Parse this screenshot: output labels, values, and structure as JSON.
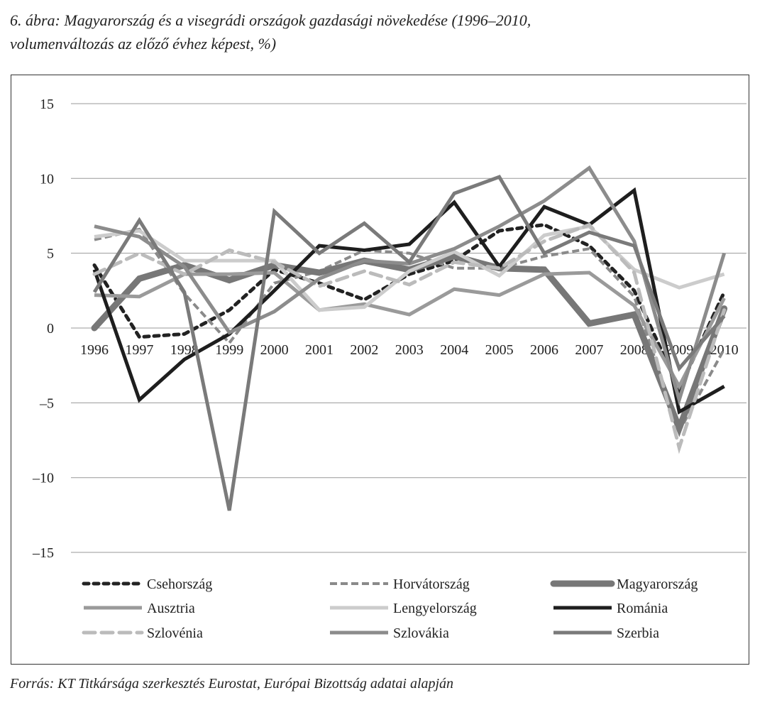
{
  "title_line1": "6. ábra: Magyarország és a visegrádi országok gazdasági növekedése (1996–2010,",
  "title_line2": "volumenváltozás az előző évhez képest, %)",
  "source": "Forrás: KT Titkársága szerkesztés Eurostat, Európai Bizottság adatai alapján",
  "chart_data": {
    "type": "line",
    "title": "6. ábra: Magyarország és a visegrádi országok gazdasági növekedése (1996–2010, volumenváltozás az előző évhez képest, %)",
    "xlabel": "",
    "ylabel": "",
    "ylim": [
      -15,
      15
    ],
    "yticks": [
      "15",
      "10",
      "5",
      "0",
      "–5",
      "–10",
      "–15"
    ],
    "ytick_values": [
      15,
      10,
      5,
      0,
      -5,
      -10,
      -15
    ],
    "x": [
      "1996",
      "1997",
      "1998",
      "1999",
      "2000",
      "2001",
      "2002",
      "2003",
      "2004",
      "2005",
      "2006",
      "2007",
      "2008",
      "2009",
      "2010"
    ],
    "grid": true,
    "legend_position": "bottom",
    "series": [
      {
        "name": "Csehország",
        "color": "#222222",
        "style": "dotted",
        "values": [
          4.2,
          -0.6,
          -0.4,
          1.2,
          3.9,
          3.0,
          1.9,
          3.6,
          4.5,
          6.5,
          6.9,
          5.5,
          2.5,
          -4.1,
          2.4
        ]
      },
      {
        "name": "Horvátország",
        "color": "#8a8a8a",
        "style": "dashed-thin",
        "values": [
          5.9,
          6.6,
          2.3,
          -1.0,
          3.0,
          3.8,
          5.2,
          5.0,
          4.0,
          4.0,
          4.8,
          5.3,
          2.1,
          -6.9,
          -1.4
        ]
      },
      {
        "name": "Magyarország",
        "color": "#777777",
        "style": "thick",
        "values": [
          0.0,
          3.3,
          4.2,
          3.2,
          4.2,
          3.7,
          4.5,
          3.9,
          4.8,
          4.0,
          3.9,
          0.3,
          0.9,
          -6.7,
          1.3
        ]
      },
      {
        "name": "Ausztria",
        "color": "#9a9a9a",
        "style": "solid",
        "values": [
          2.2,
          2.1,
          3.6,
          3.6,
          3.7,
          1.2,
          1.6,
          0.9,
          2.6,
          2.2,
          3.6,
          3.7,
          1.5,
          -3.9,
          2.0
        ]
      },
      {
        "name": "Lengyelország",
        "color": "#cccccc",
        "style": "solid",
        "values": [
          6.1,
          6.5,
          4.5,
          4.5,
          4.5,
          1.2,
          1.4,
          3.8,
          5.1,
          3.5,
          6.2,
          6.8,
          3.9,
          2.7,
          3.6
        ]
      },
      {
        "name": "Románia",
        "color": "#1e1e1e",
        "style": "solid",
        "values": [
          3.9,
          -4.8,
          -2.1,
          -0.4,
          2.5,
          5.5,
          5.2,
          5.6,
          8.4,
          4.1,
          8.1,
          6.9,
          9.2,
          -5.6,
          -3.9
        ]
      },
      {
        "name": "Szlovénia",
        "color": "#bbbbbb",
        "style": "dashed",
        "values": [
          3.6,
          5.0,
          3.6,
          5.2,
          4.4,
          2.8,
          3.8,
          2.9,
          4.4,
          4.0,
          5.8,
          6.9,
          3.7,
          -8.0,
          1.2
        ]
      },
      {
        "name": "Szlovákia",
        "color": "#8c8c8c",
        "style": "solid",
        "values": [
          6.8,
          6.1,
          4.1,
          -0.3,
          1.1,
          3.3,
          4.5,
          4.3,
          5.3,
          6.8,
          8.5,
          10.7,
          5.8,
          -4.8,
          5.0
        ]
      },
      {
        "name": "Szerbia",
        "color": "#7a7a7a",
        "style": "solid",
        "values": [
          2.4,
          7.2,
          2.4,
          -12.2,
          7.8,
          5.0,
          7.0,
          4.4,
          9.0,
          10.1,
          5.0,
          6.4,
          5.5,
          -2.7,
          0.8
        ]
      }
    ]
  }
}
